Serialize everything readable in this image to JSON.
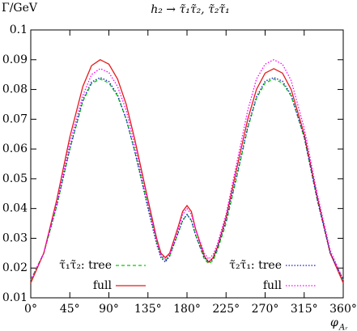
{
  "chart_data": {
    "type": "line",
    "title": "h₂ → τ̃₁τ̃₂, τ̃₂τ̃₁",
    "y_label": "Γ/GeV",
    "x_label": "φ",
    "x_label_subscript": "Aᵣ",
    "x": [
      0,
      15,
      30,
      45,
      60,
      70,
      80,
      90,
      100,
      110,
      120,
      135,
      145,
      150,
      155,
      160,
      170,
      175,
      180,
      185,
      190,
      200,
      205,
      210,
      215,
      225,
      240,
      250,
      260,
      270,
      280,
      290,
      300,
      315,
      330,
      345,
      360
    ],
    "series": [
      {
        "name": "τ̃₁τ̃₂: tree",
        "color": "#00cc00",
        "style": "dashed",
        "values": [
          0.016,
          0.025,
          0.041,
          0.06,
          0.076,
          0.082,
          0.0835,
          0.0822,
          0.0778,
          0.07,
          0.059,
          0.041,
          0.029,
          0.024,
          0.0225,
          0.024,
          0.032,
          0.036,
          0.038,
          0.036,
          0.031,
          0.023,
          0.0215,
          0.0225,
          0.026,
          0.035,
          0.054,
          0.067,
          0.077,
          0.0822,
          0.0835,
          0.0822,
          0.0778,
          0.064,
          0.043,
          0.025,
          0.016
        ]
      },
      {
        "name": "full",
        "color": "#e41a1c",
        "style": "solid",
        "values": [
          0.015,
          0.025,
          0.043,
          0.064,
          0.081,
          0.088,
          0.09,
          0.0885,
          0.0835,
          0.075,
          0.063,
          0.043,
          0.03,
          0.025,
          0.0235,
          0.025,
          0.034,
          0.039,
          0.041,
          0.039,
          0.033,
          0.024,
          0.022,
          0.0235,
          0.027,
          0.037,
          0.057,
          0.07,
          0.08,
          0.0855,
          0.087,
          0.0855,
          0.08,
          0.065,
          0.044,
          0.025,
          0.015
        ]
      },
      {
        "name": "τ̃₂τ̃₁: tree",
        "color": "#1a1acc",
        "style": "dotted",
        "values": [
          0.016,
          0.025,
          0.041,
          0.06,
          0.0765,
          0.0825,
          0.084,
          0.0827,
          0.0782,
          0.07,
          0.059,
          0.04,
          0.028,
          0.0235,
          0.022,
          0.024,
          0.032,
          0.036,
          0.038,
          0.036,
          0.031,
          0.0235,
          0.022,
          0.023,
          0.0265,
          0.036,
          0.0545,
          0.0675,
          0.0775,
          0.0828,
          0.084,
          0.0828,
          0.0782,
          0.064,
          0.043,
          0.025,
          0.016
        ]
      },
      {
        "name": "full",
        "color": "#ff00ff",
        "style": "dotted",
        "values": [
          0.016,
          0.025,
          0.042,
          0.062,
          0.078,
          0.085,
          0.087,
          0.0857,
          0.081,
          0.073,
          0.061,
          0.042,
          0.029,
          0.0245,
          0.023,
          0.0245,
          0.033,
          0.038,
          0.04,
          0.038,
          0.033,
          0.025,
          0.023,
          0.0245,
          0.028,
          0.038,
          0.059,
          0.073,
          0.0835,
          0.0885,
          0.09,
          0.0885,
          0.083,
          0.067,
          0.045,
          0.026,
          0.016
        ]
      }
    ],
    "xlim": [
      0,
      360
    ],
    "xticks": [
      {
        "value": 0,
        "label": "0°"
      },
      {
        "value": 45,
        "label": "45°"
      },
      {
        "value": 90,
        "label": "90°"
      },
      {
        "value": 135,
        "label": "135°"
      },
      {
        "value": 180,
        "label": "180°"
      },
      {
        "value": 225,
        "label": "225°"
      },
      {
        "value": 270,
        "label": "270°"
      },
      {
        "value": 315,
        "label": "315°"
      },
      {
        "value": 360,
        "label": "360°"
      }
    ],
    "ylim": [
      0.01,
      0.1
    ],
    "yticks": [
      0.01,
      0.02,
      0.03,
      0.04,
      0.05,
      0.06,
      0.07,
      0.08,
      0.09,
      0.1
    ],
    "grid": false
  }
}
